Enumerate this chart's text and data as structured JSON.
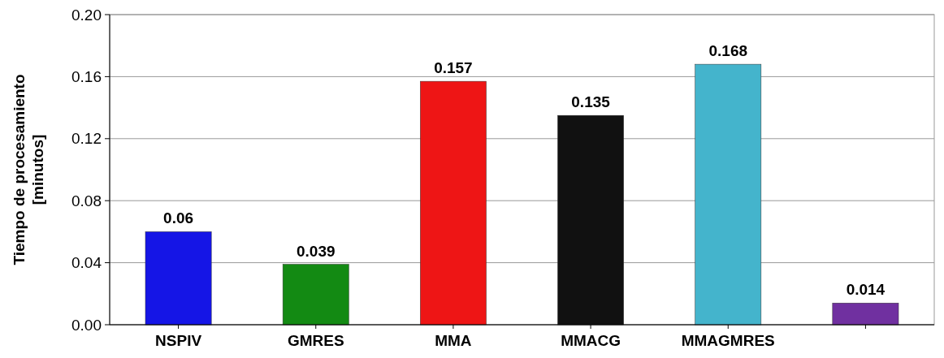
{
  "chart_data": {
    "type": "bar",
    "ylabel": "Tiempo de procesamiento\n[minutos]",
    "categories": [
      "NSPIV",
      "GMRES",
      "MMA",
      "MMACG",
      "MMAGMRES",
      null
    ],
    "values": [
      0.06,
      0.039,
      0.157,
      0.135,
      0.168,
      0.014
    ],
    "colors": [
      "#1515e6",
      "#138a13",
      "#ee1515",
      "#111111",
      "#44b4cc",
      "#7030a0"
    ],
    "ylim": [
      0,
      0.2
    ],
    "yticks": [
      "0.00",
      "0.04",
      "0.08",
      "0.12",
      "0.16",
      "0.20"
    ],
    "grid": "y",
    "data_labels": true
  }
}
